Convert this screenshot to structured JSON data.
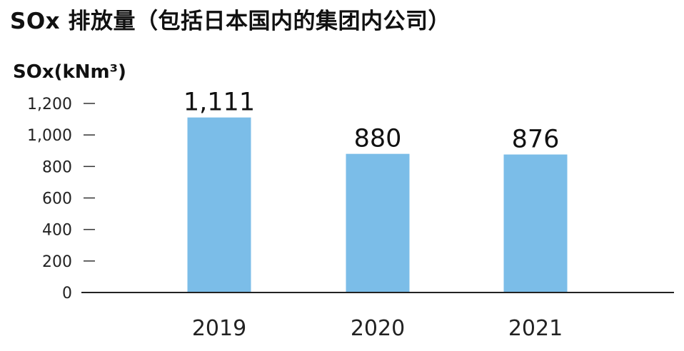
{
  "chart_data": {
    "type": "bar",
    "title": "SOx 排放量（包括日本国内的集团内公司）",
    "ylabel": "SOx(kNm³)",
    "xlabel": "",
    "categories": [
      "2019",
      "2020",
      "2021"
    ],
    "values": [
      1111,
      880,
      876
    ],
    "value_labels": [
      "1,111",
      "880",
      "876"
    ],
    "ylim": [
      0,
      1200
    ],
    "yticks": [
      0,
      200,
      400,
      600,
      800,
      1000,
      1200
    ],
    "ytick_labels": [
      "0",
      "200",
      "400",
      "600",
      "800",
      "1,000",
      "1,200"
    ],
    "bar_color": "#7bbde8",
    "grid": false,
    "legend": "none"
  }
}
